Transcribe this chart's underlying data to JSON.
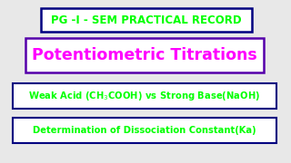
{
  "background_color": "#e8e8e8",
  "line1_text": "PG -I - SEM PRACTICAL RECORD",
  "line1_color": "#00ff00",
  "line1_box_edge": "#000080",
  "line2_text": "Potentiometric Titrations",
  "line2_color": "#ff00ff",
  "line2_box_edge": "#5500aa",
  "line3_text": "Weak Acid (CH$_3$COOH) vs Strong Base(NaOH)",
  "line3_color": "#00ff00",
  "line3_box_edge": "#000080",
  "line4_text": "Determination of Dissociation Constant(Ka)",
  "line4_color": "#00ff00",
  "line4_box_edge": "#000080",
  "line1_fontsize": 8.5,
  "line2_fontsize": 12.5,
  "line3_fontsize": 7.2,
  "line4_fontsize": 7.2
}
